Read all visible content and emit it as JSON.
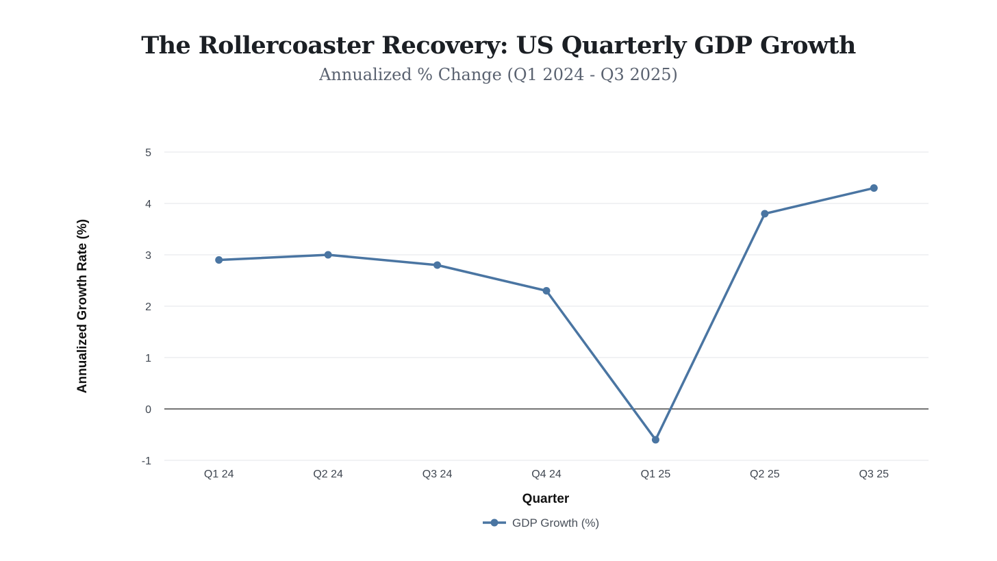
{
  "chart_data": {
    "type": "line",
    "title": "The Rollercoaster Recovery: US Quarterly GDP Growth",
    "subtitle": "Annualized % Change (Q1 2024 - Q3 2025)",
    "xlabel": "Quarter",
    "ylabel": "Annualized Growth Rate (%)",
    "categories": [
      "Q1 24",
      "Q2 24",
      "Q3 24",
      "Q4 24",
      "Q1 25",
      "Q2 25",
      "Q3 25"
    ],
    "yticks": [
      -1,
      0,
      1,
      2,
      3,
      4,
      5
    ],
    "ylim": [
      -1,
      5
    ],
    "grid": true,
    "zero_line": true,
    "legend_position": "bottom-center",
    "series": [
      {
        "name": "GDP Growth (%)",
        "color": "#4a75a2",
        "values": [
          2.9,
          3.0,
          2.8,
          2.3,
          -0.6,
          3.8,
          4.3
        ]
      }
    ]
  }
}
